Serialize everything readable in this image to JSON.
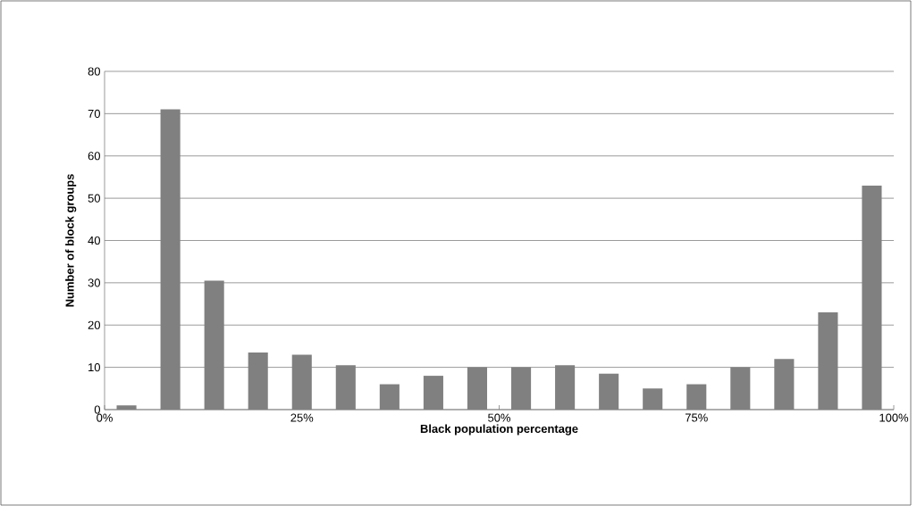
{
  "chart_data": {
    "type": "histogram",
    "xlabel": "Black population percentage",
    "ylabel": "Number of block groups",
    "bins": [
      0,
      5.56,
      11.11,
      16.67,
      22.22,
      27.78,
      33.33,
      38.89,
      44.44,
      50,
      55.56,
      61.11,
      66.67,
      72.22,
      77.78,
      83.33,
      88.89,
      94.44,
      100
    ],
    "values": [
      1,
      71,
      30.5,
      13.5,
      13,
      10.5,
      6,
      8,
      10,
      10,
      10.5,
      8.5,
      5,
      6,
      10,
      12,
      23,
      53
    ],
    "color": "#808080",
    "xlim": [
      0,
      100
    ],
    "ylim": [
      0,
      80
    ],
    "xticks": [
      {
        "value": 0,
        "label": "0%"
      },
      {
        "value": 25,
        "label": "25%"
      },
      {
        "value": 50,
        "label": "50%"
      },
      {
        "value": 75,
        "label": "75%"
      },
      {
        "value": 100,
        "label": "100%"
      }
    ],
    "yticks": [
      0,
      10,
      20,
      30,
      40,
      50,
      60,
      70,
      80
    ],
    "grid": "y"
  }
}
